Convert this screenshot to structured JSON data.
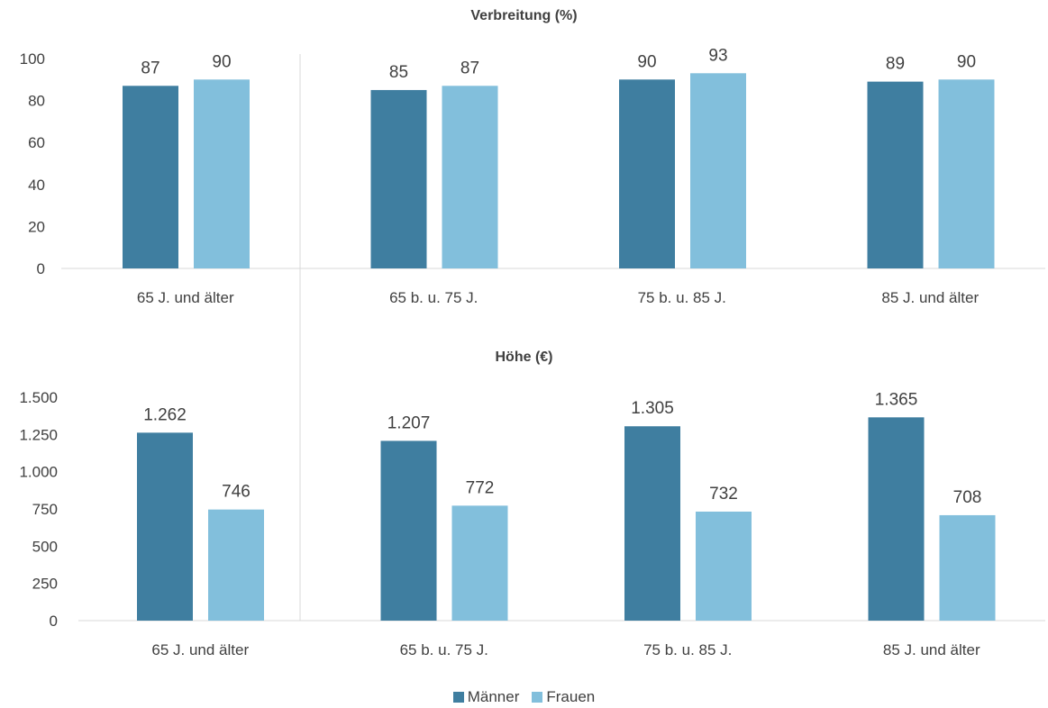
{
  "chart_data": [
    {
      "type": "bar",
      "title": "Verbreitung (%)",
      "categories": [
        "65 J. und älter",
        "65 b. u. 75 J.",
        "75 b. u. 85 J.",
        "85 J. und älter"
      ],
      "series": [
        {
          "name": "Männer",
          "values": [
            87,
            85,
            90,
            89
          ],
          "labels": [
            "87",
            "85",
            "90",
            "89"
          ]
        },
        {
          "name": "Frauen",
          "values": [
            90,
            87,
            93,
            90
          ],
          "labels": [
            "90",
            "87",
            "93",
            "90"
          ]
        }
      ],
      "ylim": [
        0,
        100
      ],
      "yticks": [
        0,
        20,
        40,
        60,
        80,
        100
      ],
      "ytick_labels": [
        "0",
        "20",
        "40",
        "60",
        "80",
        "100"
      ],
      "grid": false
    },
    {
      "type": "bar",
      "title": "Höhe (€)",
      "categories": [
        "65 J. und älter",
        "65 b. u. 75 J.",
        "75 b. u. 85 J.",
        "85 J. und älter"
      ],
      "series": [
        {
          "name": "Männer",
          "values": [
            1262,
            1207,
            1305,
            1365
          ],
          "labels": [
            "1.262",
            "1.207",
            "1.305",
            "1.365"
          ]
        },
        {
          "name": "Frauen",
          "values": [
            746,
            772,
            732,
            708
          ],
          "labels": [
            "746",
            "772",
            "732",
            "708"
          ]
        }
      ],
      "ylim": [
        0,
        1500
      ],
      "yticks": [
        0,
        250,
        500,
        750,
        1000,
        1250,
        1500
      ],
      "ytick_labels": [
        "0",
        "250",
        "500",
        "750",
        "1.000",
        "1.250",
        "1.500"
      ],
      "grid": false
    }
  ],
  "legend": {
    "placement": "bottom-center",
    "items": [
      {
        "name": "Männer",
        "color": "#3f7ea0"
      },
      {
        "name": "Frauen",
        "color": "#82bfdc"
      }
    ]
  }
}
